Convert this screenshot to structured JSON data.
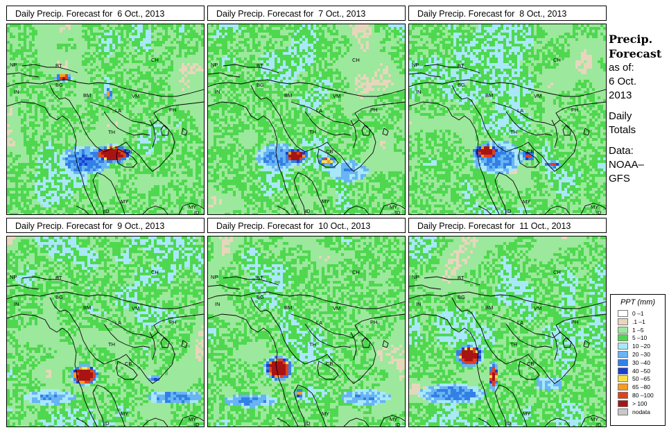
{
  "panels": [
    {
      "title": "Daily Precip. Forecast for  6 Oct., 2013"
    },
    {
      "title": "Daily Precip. Forecast for  7 Oct., 2013"
    },
    {
      "title": "Daily Precip. Forecast for  8 Oct., 2013"
    },
    {
      "title": "Daily Precip. Forecast for  9 Oct., 2013"
    },
    {
      "title": "Daily Precip. Forecast for  10 Oct., 2013"
    },
    {
      "title": "Daily Precip. Forecast for  11 Oct., 2013"
    }
  ],
  "country_labels": {
    "ch": "CH",
    "np": "NP",
    "bt": "BT",
    "bg": "BG",
    "in": "IN",
    "bm": "BM",
    "vm": "VM",
    "la": "LA",
    "th": "TH",
    "cb": "CB",
    "my": "MY",
    "id": "ID",
    "ph": "PH"
  },
  "side": {
    "heading_line1": "Precip.",
    "heading_line2": "Forecast",
    "asof": "as of:",
    "date_line1": "6 Oct.",
    "date_line2": "2013",
    "daily1": "Daily",
    "daily2": "Totals",
    "data1": "Data:",
    "data2": "NOAA–",
    "data3": "GFS"
  },
  "legend": {
    "title": "PPT (mm)",
    "items": [
      {
        "label": "0 –1",
        "color": "#ffffff"
      },
      {
        "label": ".1 –1",
        "color": "#e8d6bc"
      },
      {
        "label": "1 –5",
        "color": "#9ce89c"
      },
      {
        "label": "5 –10",
        "color": "#4fd84f"
      },
      {
        "label": "10 –20",
        "color": "#a8e8f8"
      },
      {
        "label": "20 –30",
        "color": "#68b4f4"
      },
      {
        "label": "30 –40",
        "color": "#3280e6"
      },
      {
        "label": "40 –50",
        "color": "#1a40d0"
      },
      {
        "label": "50 –65",
        "color": "#f8e050"
      },
      {
        "label": "65 –80",
        "color": "#f89c20"
      },
      {
        "label": "80 –100",
        "color": "#e0401c"
      },
      {
        "label": "> 100",
        "color": "#a81414"
      },
      {
        "label": "nodata",
        "color": "#c8c8c8"
      }
    ]
  }
}
